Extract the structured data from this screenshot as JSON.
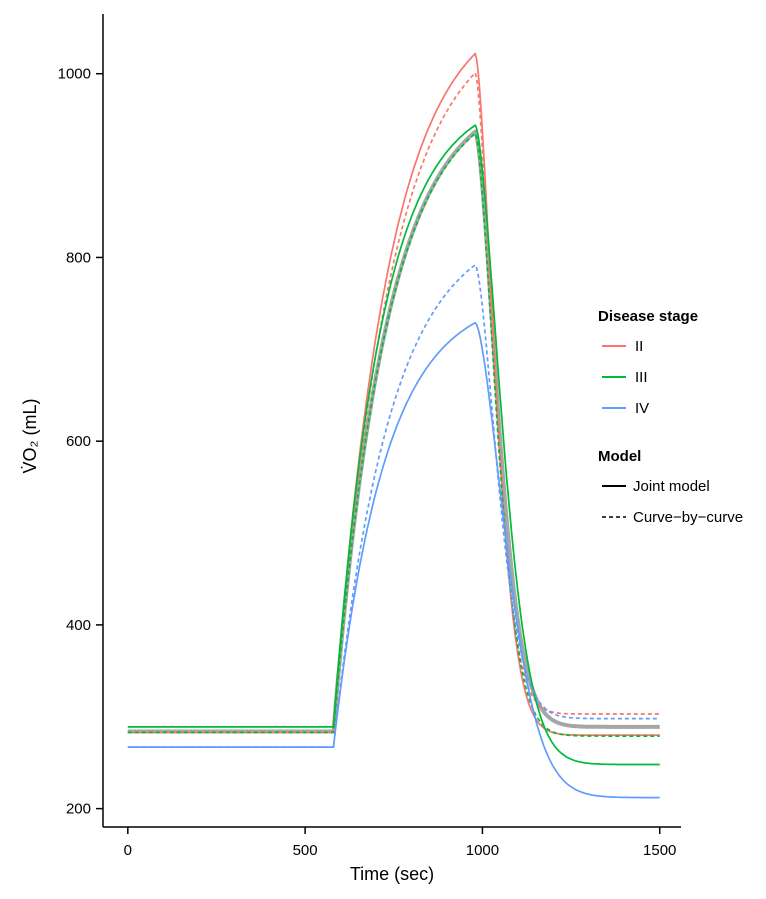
{
  "chart_data": {
    "type": "line",
    "title": "",
    "xlabel": "Time (sec)",
    "ylabel": "V̇O₂ (mL)",
    "xlim": [
      -70,
      1560
    ],
    "ylim": [
      180,
      1065
    ],
    "xticks": [
      0,
      500,
      1000,
      1500
    ],
    "yticks": [
      200,
      400,
      600,
      800,
      1000
    ],
    "xtick_labels": [
      "0",
      "500",
      "1000",
      "1500"
    ],
    "ytick_labels": [
      "200",
      "400",
      "600",
      "800",
      "1000"
    ],
    "grid": false,
    "legend_placement": "right",
    "legend": {
      "disease_stage": {
        "title": "Disease stage",
        "items": [
          {
            "label": "II",
            "color": "#F8766D"
          },
          {
            "label": "III",
            "color": "#00BA38"
          },
          {
            "label": "IV",
            "color": "#619CFF"
          }
        ]
      },
      "model": {
        "title": "Model",
        "items": [
          {
            "label": "Joint model",
            "dash": "solid"
          },
          {
            "label": "Curve−by−curve",
            "dash": "dashed"
          }
        ]
      }
    },
    "colors": {
      "II": "#F8766D",
      "III": "#00BA38",
      "IV": "#619CFF",
      "overall": "#A6A6A6"
    },
    "series": [
      {
        "stage": "II",
        "model": "joint",
        "baseline": 283,
        "peak": 1022,
        "post": 280,
        "tau_on": 155,
        "tau_off": 70
      },
      {
        "stage": "II",
        "model": "curve",
        "baseline": 283,
        "peak": 1001,
        "post": 303,
        "tau_on": 160,
        "tau_off": 68
      },
      {
        "stage": "III",
        "model": "joint",
        "baseline": 289,
        "peak": 944,
        "post": 248,
        "tau_on": 135,
        "tau_off": 95
      },
      {
        "stage": "III",
        "model": "curve",
        "baseline": 283,
        "peak": 935,
        "post": 279,
        "tau_on": 150,
        "tau_off": 75
      },
      {
        "stage": "IV",
        "model": "joint",
        "baseline": 267,
        "peak": 729,
        "post": 212,
        "tau_on": 145,
        "tau_off": 110
      },
      {
        "stage": "IV",
        "model": "curve",
        "baseline": 267,
        "peak": 792,
        "post": 298,
        "tau_on": 160,
        "tau_off": 80
      },
      {
        "stage": "overall",
        "model": "joint",
        "baseline": 284,
        "peak": 937,
        "post": 289,
        "tau_on": 150,
        "tau_off": 80
      }
    ],
    "phases": {
      "t_on": 580,
      "t_off": 980,
      "t_end": 1500
    }
  }
}
